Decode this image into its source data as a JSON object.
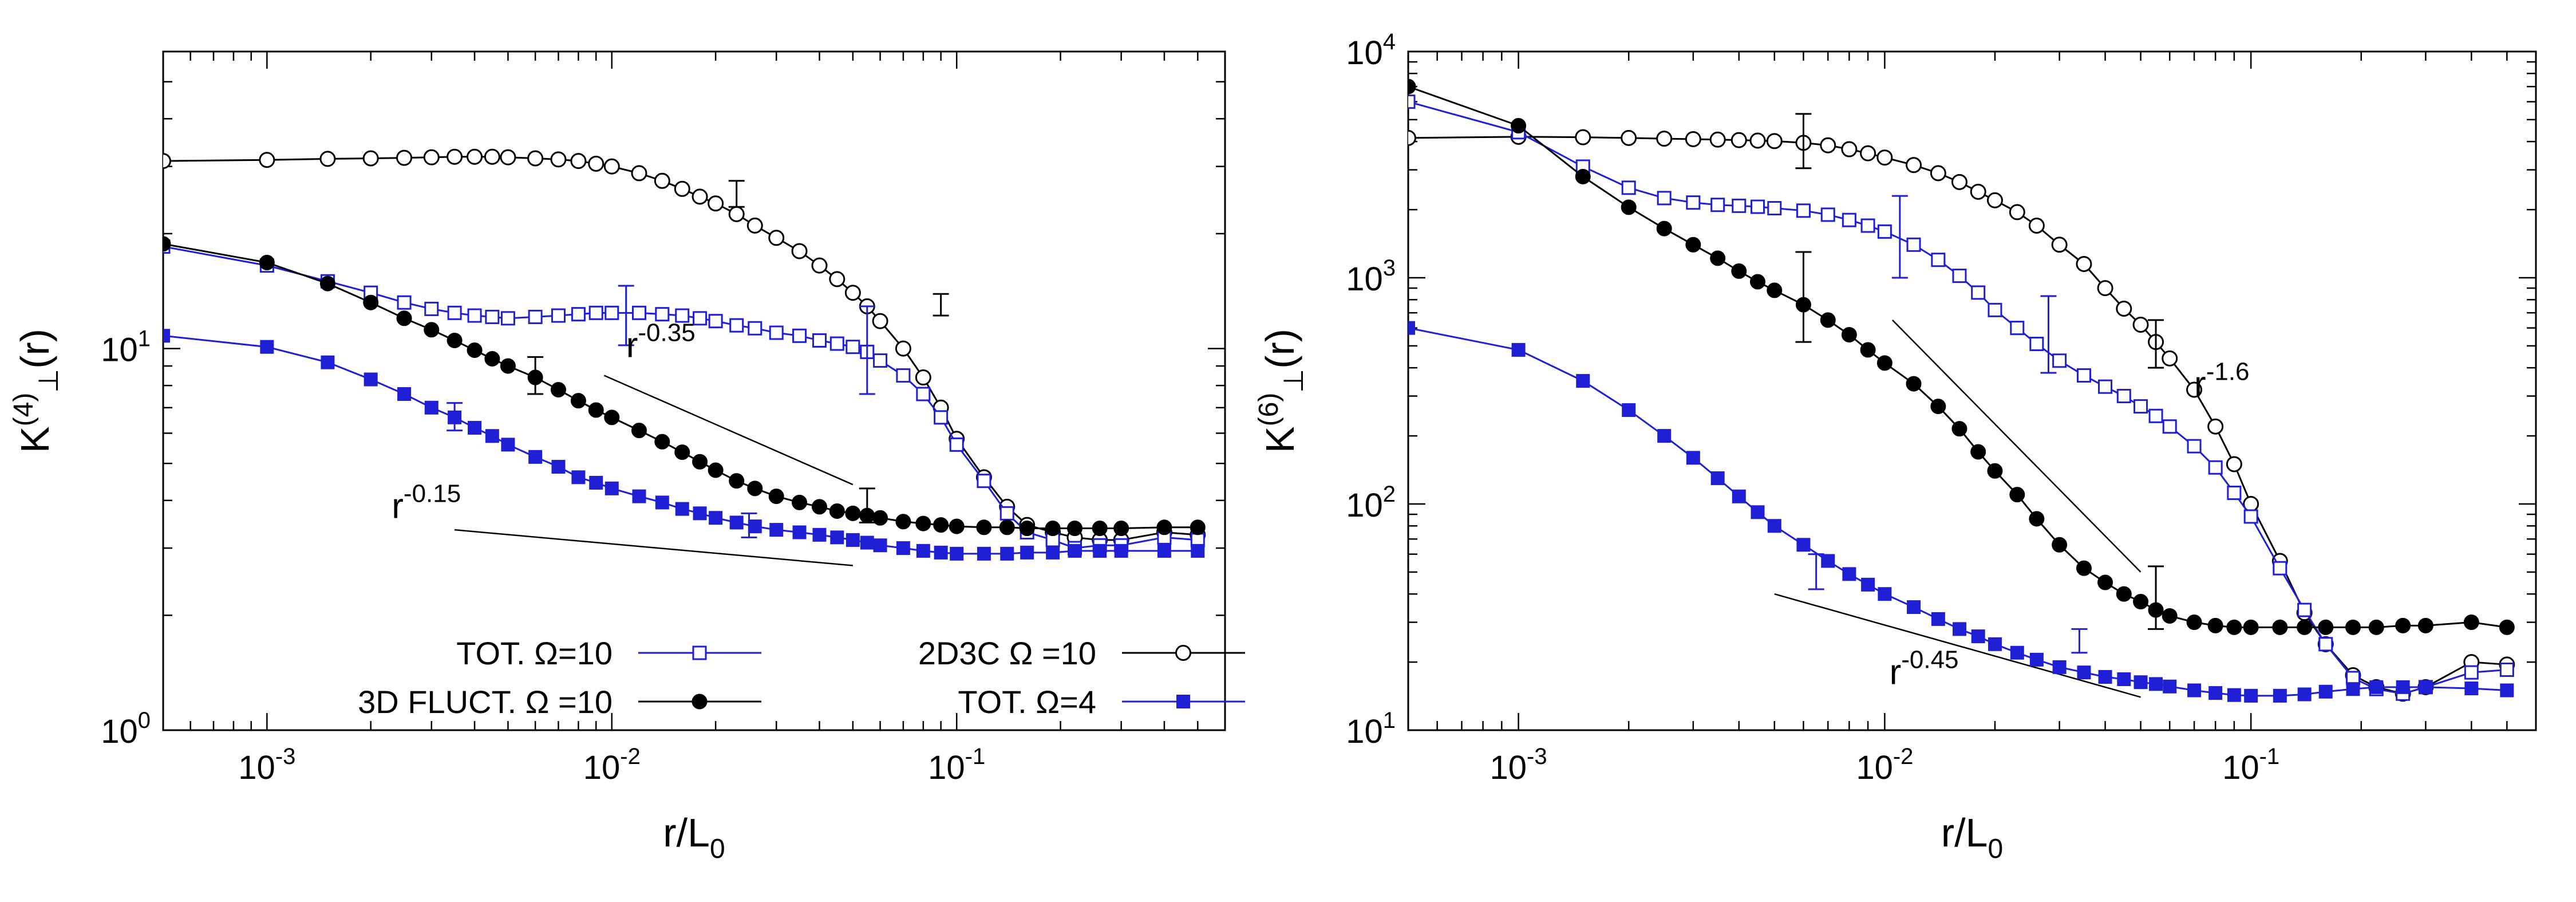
{
  "chart_data": [
    {
      "type": "line",
      "panel": "left",
      "xscale": "log",
      "yscale": "log",
      "xlim": [
        0.0005,
        0.6
      ],
      "ylim": [
        1,
        60
      ],
      "xlabel": {
        "base": "r/L",
        "sub": "0"
      },
      "ylabel": {
        "base": "K",
        "sup": "(4)",
        "sub": "⊥",
        "tail": "(r)"
      },
      "x_ticks": [
        {
          "value": 0.001,
          "exp": "-3"
        },
        {
          "value": 0.01,
          "exp": "-2"
        },
        {
          "value": 0.1,
          "exp": "-1"
        }
      ],
      "y_ticks": [
        {
          "value": 1,
          "exp": "0"
        },
        {
          "value": 10,
          "exp": "1"
        }
      ],
      "tick_base": "10",
      "legend_position": "bottom",
      "series": [
        {
          "name": "2D3C  Ω =10",
          "color": "#000000",
          "marker": "open-circle",
          "x": [
            0.0005,
            0.001,
            0.0015,
            0.002,
            0.0025,
            0.003,
            0.0035,
            0.004,
            0.0045,
            0.005,
            0.006,
            0.007,
            0.008,
            0.009,
            0.01,
            0.012,
            0.014,
            0.016,
            0.018,
            0.02,
            0.023,
            0.026,
            0.03,
            0.035,
            0.04,
            0.045,
            0.05,
            0.055,
            0.06,
            0.07,
            0.08,
            0.09,
            0.1,
            0.12,
            0.14,
            0.16,
            0.19,
            0.22,
            0.26,
            0.3,
            0.4,
            0.5
          ],
          "y": [
            31,
            31.2,
            31.4,
            31.5,
            31.6,
            31.7,
            31.8,
            31.8,
            31.8,
            31.7,
            31.5,
            31.3,
            31,
            30.5,
            30,
            28.8,
            27.5,
            26.2,
            25,
            24,
            22.5,
            21,
            19.5,
            18,
            16.5,
            15.2,
            14,
            12.9,
            11.8,
            10,
            8.4,
            7,
            5.8,
            4.6,
            3.85,
            3.45,
            3.3,
            3.2,
            3.15,
            3.15,
            3.3,
            3.25
          ]
        },
        {
          "name": "TOT. Ω=10",
          "color": "#1f1fd6",
          "marker": "open-square",
          "x": [
            0.0005,
            0.001,
            0.0015,
            0.002,
            0.0025,
            0.003,
            0.0035,
            0.004,
            0.0045,
            0.005,
            0.006,
            0.007,
            0.008,
            0.009,
            0.01,
            0.012,
            0.014,
            0.016,
            0.018,
            0.02,
            0.023,
            0.026,
            0.03,
            0.035,
            0.04,
            0.045,
            0.05,
            0.055,
            0.06,
            0.07,
            0.08,
            0.09,
            0.1,
            0.12,
            0.14,
            0.16,
            0.19,
            0.22,
            0.26,
            0.3,
            0.4,
            0.5
          ],
          "y": [
            18.5,
            16.5,
            15,
            14,
            13.2,
            12.7,
            12.4,
            12.2,
            12.1,
            12,
            12.1,
            12.2,
            12.3,
            12.4,
            12.4,
            12.4,
            12.3,
            12.2,
            12.0,
            11.8,
            11.5,
            11.3,
            11,
            10.8,
            10.5,
            10.3,
            10.1,
            9.8,
            9.3,
            8.5,
            7.6,
            6.6,
            5.6,
            4.5,
            3.7,
            3.3,
            3.15,
            3.0,
            3.05,
            3.05,
            3.2,
            3.15
          ]
        },
        {
          "name": "3D FLUCT. Ω =10",
          "color": "#000000",
          "marker": "filled-circle",
          "x": [
            0.0005,
            0.001,
            0.0015,
            0.002,
            0.0025,
            0.003,
            0.0035,
            0.004,
            0.0045,
            0.005,
            0.006,
            0.007,
            0.008,
            0.009,
            0.01,
            0.012,
            0.014,
            0.016,
            0.018,
            0.02,
            0.023,
            0.026,
            0.03,
            0.035,
            0.04,
            0.045,
            0.05,
            0.055,
            0.06,
            0.07,
            0.08,
            0.09,
            0.1,
            0.12,
            0.14,
            0.16,
            0.19,
            0.22,
            0.26,
            0.3,
            0.4,
            0.5
          ],
          "y": [
            18.8,
            16.8,
            14.8,
            13.2,
            12,
            11.2,
            10.5,
            9.9,
            9.4,
            9,
            8.4,
            7.8,
            7.3,
            6.9,
            6.6,
            6.1,
            5.7,
            5.35,
            5.05,
            4.8,
            4.5,
            4.3,
            4.1,
            3.95,
            3.85,
            3.75,
            3.7,
            3.65,
            3.6,
            3.52,
            3.48,
            3.45,
            3.42,
            3.4,
            3.4,
            3.38,
            3.38,
            3.38,
            3.38,
            3.38,
            3.4,
            3.4
          ]
        },
        {
          "name": "TOT. Ω=4",
          "color": "#1f1fd6",
          "marker": "filled-square",
          "x": [
            0.0005,
            0.001,
            0.0015,
            0.002,
            0.0025,
            0.003,
            0.0035,
            0.004,
            0.0045,
            0.005,
            0.006,
            0.007,
            0.008,
            0.009,
            0.01,
            0.012,
            0.014,
            0.016,
            0.018,
            0.02,
            0.023,
            0.026,
            0.03,
            0.035,
            0.04,
            0.045,
            0.05,
            0.055,
            0.06,
            0.07,
            0.08,
            0.09,
            0.1,
            0.12,
            0.14,
            0.16,
            0.19,
            0.22,
            0.26,
            0.3,
            0.4,
            0.5
          ],
          "y": [
            10.8,
            10.1,
            9.2,
            8.3,
            7.6,
            7,
            6.6,
            6.2,
            5.9,
            5.6,
            5.2,
            4.9,
            4.6,
            4.45,
            4.3,
            4.1,
            3.95,
            3.8,
            3.7,
            3.6,
            3.5,
            3.42,
            3.35,
            3.3,
            3.25,
            3.2,
            3.15,
            3.1,
            3.05,
            3.0,
            2.95,
            2.92,
            2.9,
            2.9,
            2.9,
            2.92,
            2.92,
            2.95,
            2.95,
            2.95,
            2.95,
            2.95
          ]
        }
      ],
      "error_bars": [
        {
          "series": 0,
          "x": 0.023,
          "low": 23.5,
          "high": 27.5
        },
        {
          "series": 0,
          "x": 0.09,
          "low": 12.2,
          "high": 13.9
        },
        {
          "series": 1,
          "x": 0.011,
          "low": 10.2,
          "high": 14.6
        },
        {
          "series": 1,
          "x": 0.055,
          "low": 7.6,
          "high": 12.9
        },
        {
          "series": 2,
          "x": 0.006,
          "low": 7.6,
          "high": 9.5
        },
        {
          "series": 2,
          "x": 0.055,
          "low": 3.5,
          "high": 4.3
        },
        {
          "series": 3,
          "x": 0.0035,
          "low": 6.1,
          "high": 7.2
        },
        {
          "series": 3,
          "x": 0.025,
          "low": 3.2,
          "high": 3.7
        }
      ],
      "annotations": [
        {
          "base": "r",
          "exp": "-0.35",
          "label_at": [
            0.011,
            9.5
          ],
          "line": [
            [
              0.0095,
              8.5
            ],
            [
              0.05,
              4.4
            ]
          ]
        },
        {
          "base": "r",
          "exp": "-0.15",
          "label_at": [
            0.0023,
            3.6
          ],
          "line": [
            [
              0.0035,
              3.35
            ],
            [
              0.05,
              2.7
            ]
          ]
        }
      ]
    },
    {
      "type": "line",
      "panel": "right",
      "xscale": "log",
      "yscale": "log",
      "xlim": [
        0.0005,
        0.6
      ],
      "ylim": [
        10,
        10000
      ],
      "xlabel": {
        "base": "r/L",
        "sub": "0"
      },
      "ylabel": {
        "base": "K",
        "sup": "(6)",
        "sub": "⊥",
        "tail": "(r)"
      },
      "x_ticks": [
        {
          "value": 0.001,
          "exp": "-3"
        },
        {
          "value": 0.01,
          "exp": "-2"
        },
        {
          "value": 0.1,
          "exp": "-1"
        }
      ],
      "y_ticks": [
        {
          "value": 10,
          "exp": "1"
        },
        {
          "value": 100,
          "exp": "2"
        },
        {
          "value": 1000,
          "exp": "3"
        },
        {
          "value": 10000,
          "exp": "4"
        }
      ],
      "tick_base": "10",
      "series": [
        {
          "name": "2D3C  Ω =10",
          "color": "#000000",
          "marker": "open-circle",
          "x": [
            0.0005,
            0.001,
            0.0015,
            0.002,
            0.0025,
            0.003,
            0.0035,
            0.004,
            0.0045,
            0.005,
            0.006,
            0.007,
            0.008,
            0.009,
            0.01,
            0.012,
            0.014,
            0.016,
            0.018,
            0.02,
            0.023,
            0.026,
            0.03,
            0.035,
            0.04,
            0.045,
            0.05,
            0.055,
            0.06,
            0.07,
            0.08,
            0.09,
            0.1,
            0.12,
            0.14,
            0.16,
            0.19,
            0.22,
            0.26,
            0.3,
            0.4,
            0.5
          ],
          "y": [
            4150,
            4200,
            4180,
            4150,
            4120,
            4100,
            4080,
            4060,
            4040,
            4020,
            3950,
            3850,
            3700,
            3550,
            3400,
            3150,
            2900,
            2650,
            2400,
            2200,
            1950,
            1700,
            1400,
            1150,
            900,
            730,
            620,
            520,
            440,
            320,
            220,
            150,
            100,
            56,
            33,
            24,
            17.5,
            15.5,
            14.5,
            15.5,
            20,
            19.5
          ]
        },
        {
          "name": "TOT. Ω=10",
          "color": "#1f1fd6",
          "marker": "open-square",
          "x": [
            0.0005,
            0.001,
            0.0015,
            0.002,
            0.0025,
            0.003,
            0.0035,
            0.004,
            0.0045,
            0.005,
            0.006,
            0.007,
            0.008,
            0.009,
            0.01,
            0.012,
            0.014,
            0.016,
            0.018,
            0.02,
            0.023,
            0.026,
            0.03,
            0.035,
            0.04,
            0.045,
            0.05,
            0.055,
            0.06,
            0.07,
            0.08,
            0.09,
            0.1,
            0.12,
            0.14,
            0.16,
            0.19,
            0.22,
            0.26,
            0.3,
            0.4,
            0.5
          ],
          "y": [
            6000,
            4400,
            3100,
            2500,
            2250,
            2150,
            2100,
            2080,
            2060,
            2030,
            1980,
            1900,
            1800,
            1700,
            1600,
            1400,
            1200,
            1020,
            860,
            720,
            600,
            510,
            430,
            370,
            330,
            300,
            270,
            245,
            220,
            180,
            145,
            112,
            88,
            52,
            34,
            24,
            17,
            15.2,
            14.5,
            15.5,
            18,
            18.5
          ]
        },
        {
          "name": "3D FLUCT. Ω =10",
          "color": "#000000",
          "marker": "filled-circle",
          "x": [
            0.0005,
            0.001,
            0.0015,
            0.002,
            0.0025,
            0.003,
            0.0035,
            0.004,
            0.0045,
            0.005,
            0.006,
            0.007,
            0.008,
            0.009,
            0.01,
            0.012,
            0.014,
            0.016,
            0.018,
            0.02,
            0.023,
            0.026,
            0.03,
            0.035,
            0.04,
            0.045,
            0.05,
            0.055,
            0.06,
            0.07,
            0.08,
            0.09,
            0.1,
            0.12,
            0.14,
            0.16,
            0.19,
            0.22,
            0.26,
            0.3,
            0.4,
            0.5
          ],
          "y": [
            7000,
            4700,
            2800,
            2050,
            1650,
            1400,
            1220,
            1070,
            960,
            880,
            760,
            650,
            560,
            480,
            420,
            340,
            270,
            215,
            170,
            140,
            110,
            86,
            66,
            52,
            45,
            40,
            37,
            34,
            32,
            30,
            29,
            28.5,
            28.5,
            28.5,
            28.5,
            28.5,
            28.5,
            28.5,
            29,
            29,
            30,
            28.5
          ]
        },
        {
          "name": "TOT. Ω=4",
          "color": "#1f1fd6",
          "marker": "filled-square",
          "x": [
            0.0005,
            0.001,
            0.0015,
            0.002,
            0.0025,
            0.003,
            0.0035,
            0.004,
            0.0045,
            0.005,
            0.006,
            0.007,
            0.008,
            0.009,
            0.01,
            0.012,
            0.014,
            0.016,
            0.018,
            0.02,
            0.023,
            0.026,
            0.03,
            0.035,
            0.04,
            0.045,
            0.05,
            0.055,
            0.06,
            0.07,
            0.08,
            0.09,
            0.1,
            0.12,
            0.14,
            0.16,
            0.19,
            0.22,
            0.26,
            0.3,
            0.4,
            0.5
          ],
          "y": [
            600,
            480,
            350,
            260,
            200,
            160,
            130,
            108,
            92,
            80,
            66,
            56,
            49,
            44,
            40,
            35,
            31,
            28,
            26,
            24,
            22,
            20.5,
            19,
            18,
            17.2,
            16.8,
            16.3,
            16,
            15.6,
            15,
            14.6,
            14.3,
            14.2,
            14.2,
            14.4,
            14.8,
            15.2,
            15.5,
            15.5,
            15.5,
            15.3,
            15
          ]
        }
      ],
      "error_bars": [
        {
          "series": 0,
          "x": 0.006,
          "low": 3050,
          "high": 5300
        },
        {
          "series": 0,
          "x": 0.055,
          "low": 400,
          "high": 650
        },
        {
          "series": 1,
          "x": 0.011,
          "low": 1000,
          "high": 2300
        },
        {
          "series": 1,
          "x": 0.028,
          "low": 380,
          "high": 830
        },
        {
          "series": 2,
          "x": 0.006,
          "low": 520,
          "high": 1300
        },
        {
          "series": 2,
          "x": 0.055,
          "low": 28,
          "high": 53
        },
        {
          "series": 3,
          "x": 0.0065,
          "low": 42,
          "high": 60
        },
        {
          "series": 3,
          "x": 0.034,
          "low": 22,
          "high": 28
        }
      ],
      "annotations": [
        {
          "base": "r",
          "exp": "-1.6",
          "label_at": [
            0.07,
            300
          ],
          "line": [
            [
              0.0105,
              650
            ],
            [
              0.05,
              50
            ]
          ]
        },
        {
          "base": "r",
          "exp": "-0.45",
          "label_at": [
            0.0103,
            16
          ],
          "line": [
            [
              0.005,
              40
            ],
            [
              0.05,
              14
            ]
          ]
        }
      ]
    }
  ]
}
